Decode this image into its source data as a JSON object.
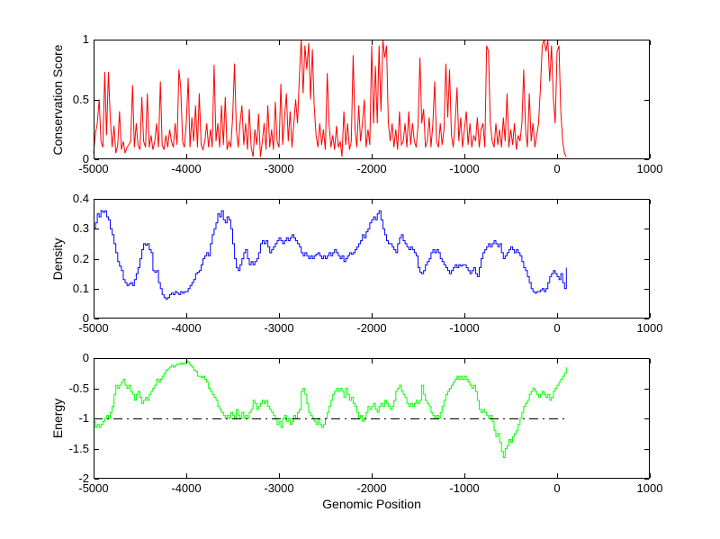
{
  "figure": {
    "background": "#ffffff",
    "axis_color": "#000000"
  },
  "xlabel": "Genomic Position",
  "chart_data": [
    {
      "type": "line",
      "name": "conservation-score",
      "ylabel": "Conservation Score",
      "xlabel": "",
      "color": "#ff0000",
      "interpolation": "linear",
      "xlim": [
        -5000,
        1000
      ],
      "ylim": [
        0,
        1
      ],
      "xticks": [
        -5000,
        -4000,
        -3000,
        -2000,
        -1000,
        0,
        1000
      ],
      "xtick_labels": [
        "-5000",
        "-4000",
        "-3000",
        "-2000",
        "-1000",
        "0",
        "1000"
      ],
      "yticks": [
        0,
        0.5,
        1
      ],
      "ytick_labels": [
        "0",
        "0.5",
        "1"
      ],
      "x_start": -5000,
      "x_step": 20,
      "values": [
        0.05,
        0.22,
        0.3,
        0.5,
        0.15,
        0.1,
        0.73,
        0.2,
        0.73,
        0.35,
        0.1,
        0.28,
        0.05,
        0.12,
        0.4,
        0.08,
        0.15,
        0.05,
        0.1,
        0.12,
        0.15,
        0.62,
        0.1,
        0.3,
        0.12,
        0.08,
        0.52,
        0.15,
        0.1,
        0.55,
        0.1,
        0.2,
        0.08,
        0.15,
        0.3,
        0.1,
        0.65,
        0.12,
        0.08,
        0.2,
        0.1,
        0.25,
        0.15,
        0.1,
        0.3,
        0.12,
        0.75,
        0.6,
        0.15,
        0.1,
        0.3,
        0.68,
        0.1,
        0.35,
        0.15,
        0.45,
        0.1,
        0.55,
        0.12,
        0.08,
        0.15,
        0.3,
        0.1,
        0.25,
        0.1,
        0.79,
        0.15,
        0.3,
        0.1,
        0.45,
        0.12,
        0.52,
        0.08,
        0.15,
        0.1,
        0.35,
        0.8,
        0.25,
        0.1,
        0.3,
        0.45,
        0.12,
        0.3,
        0.08,
        0.42,
        0.1,
        0.02,
        0.25,
        0.12,
        0.38,
        0.02,
        0.15,
        0.3,
        0.08,
        0.45,
        0.1,
        0.25,
        0.08,
        0.48,
        0.15,
        0.1,
        0.63,
        0.12,
        0.35,
        0.55,
        0.15,
        0.4,
        0.1,
        0.3,
        0.5,
        0.3,
        0.7,
        1.0,
        0.55,
        0.95,
        0.75,
        0.97,
        0.5,
        0.92,
        0.45,
        0.2,
        0.1,
        0.3,
        0.12,
        0.25,
        0.08,
        0.72,
        0.3,
        0.1,
        0.2,
        0.08,
        0.28,
        0.1,
        0.15,
        0.02,
        0.4,
        0.12,
        0.3,
        0.08,
        0.15,
        0.87,
        0.25,
        0.1,
        0.45,
        0.15,
        0.3,
        0.5,
        0.1,
        0.25,
        0.12,
        0.95,
        0.3,
        0.78,
        0.3,
        0.95,
        0.4,
        1.0,
        0.85,
        0.95,
        0.3,
        0.15,
        0.3,
        0.1,
        0.25,
        0.08,
        0.4,
        0.12,
        0.15,
        0.3,
        0.1,
        0.4,
        0.12,
        0.3,
        0.15,
        0.1,
        0.28,
        0.85,
        0.3,
        0.42,
        0.1,
        0.15,
        0.35,
        0.1,
        0.3,
        0.65,
        0.15,
        0.1,
        0.3,
        0.12,
        0.25,
        0.8,
        0.35,
        0.75,
        0.2,
        0.1,
        0.3,
        0.6,
        0.15,
        0.35,
        0.1,
        0.25,
        0.4,
        0.12,
        0.3,
        0.1,
        0.2,
        0.15,
        0.35,
        0.1,
        0.25,
        0.3,
        0.1,
        0.95,
        0.9,
        0.3,
        0.15,
        0.1,
        0.3,
        0.12,
        0.25,
        0.1,
        0.35,
        0.15,
        0.55,
        0.1,
        0.25,
        0.12,
        0.3,
        0.08,
        0.2,
        0.15,
        0.3,
        0.75,
        0.25,
        0.1,
        0.55,
        0.15,
        0.3,
        0.1,
        0.2,
        0.3,
        0.6,
        0.95,
        1.0,
        0.9,
        1.0,
        0.65,
        0.95,
        0.5,
        0.3,
        0.9,
        0.95,
        0.4,
        0.15,
        0.05,
        0.02
      ]
    },
    {
      "type": "line",
      "name": "density",
      "ylabel": "Density",
      "xlabel": "",
      "color": "#0000ff",
      "interpolation": "step",
      "xlim": [
        -5000,
        1000
      ],
      "ylim": [
        0,
        0.4
      ],
      "xticks": [
        -5000,
        -4000,
        -3000,
        -2000,
        -1000,
        0,
        1000
      ],
      "xtick_labels": [
        "-5000",
        "-4000",
        "-3000",
        "-2000",
        "-1000",
        "0",
        "1000"
      ],
      "yticks": [
        0,
        0.1,
        0.2,
        0.3,
        0.4
      ],
      "ytick_labels": [
        "0",
        "0.1",
        "0.2",
        "0.3",
        "0.4"
      ],
      "x_start": -5000,
      "x_step": 20,
      "values": [
        0.3,
        0.32,
        0.35,
        0.34,
        0.36,
        0.355,
        0.36,
        0.34,
        0.33,
        0.3,
        0.28,
        0.25,
        0.22,
        0.19,
        0.175,
        0.16,
        0.13,
        0.12,
        0.11,
        0.115,
        0.12,
        0.11,
        0.13,
        0.15,
        0.17,
        0.2,
        0.23,
        0.25,
        0.245,
        0.25,
        0.23,
        0.22,
        0.16,
        0.155,
        0.16,
        0.12,
        0.1,
        0.08,
        0.07,
        0.065,
        0.07,
        0.08,
        0.085,
        0.08,
        0.09,
        0.085,
        0.08,
        0.09,
        0.085,
        0.09,
        0.09,
        0.1,
        0.11,
        0.12,
        0.13,
        0.15,
        0.155,
        0.16,
        0.18,
        0.2,
        0.21,
        0.22,
        0.21,
        0.25,
        0.28,
        0.3,
        0.32,
        0.35,
        0.34,
        0.36,
        0.33,
        0.32,
        0.34,
        0.33,
        0.3,
        0.25,
        0.2,
        0.17,
        0.16,
        0.18,
        0.2,
        0.22,
        0.23,
        0.2,
        0.18,
        0.19,
        0.18,
        0.19,
        0.2,
        0.22,
        0.25,
        0.26,
        0.25,
        0.26,
        0.24,
        0.22,
        0.23,
        0.24,
        0.25,
        0.26,
        0.27,
        0.26,
        0.25,
        0.26,
        0.27,
        0.26,
        0.27,
        0.28,
        0.27,
        0.26,
        0.25,
        0.24,
        0.22,
        0.21,
        0.22,
        0.21,
        0.2,
        0.21,
        0.2,
        0.21,
        0.215,
        0.22,
        0.21,
        0.2,
        0.21,
        0.2,
        0.21,
        0.22,
        0.21,
        0.22,
        0.23,
        0.22,
        0.21,
        0.2,
        0.21,
        0.19,
        0.2,
        0.21,
        0.22,
        0.215,
        0.22,
        0.23,
        0.24,
        0.25,
        0.26,
        0.28,
        0.27,
        0.29,
        0.3,
        0.32,
        0.33,
        0.34,
        0.33,
        0.35,
        0.36,
        0.33,
        0.3,
        0.28,
        0.26,
        0.25,
        0.25,
        0.24,
        0.23,
        0.22,
        0.25,
        0.27,
        0.28,
        0.26,
        0.25,
        0.24,
        0.23,
        0.24,
        0.23,
        0.22,
        0.21,
        0.17,
        0.155,
        0.15,
        0.16,
        0.18,
        0.19,
        0.2,
        0.22,
        0.23,
        0.22,
        0.23,
        0.22,
        0.2,
        0.19,
        0.18,
        0.17,
        0.16,
        0.15,
        0.16,
        0.17,
        0.18,
        0.17,
        0.18,
        0.175,
        0.18,
        0.18,
        0.17,
        0.16,
        0.15,
        0.16,
        0.17,
        0.15,
        0.14,
        0.17,
        0.2,
        0.22,
        0.23,
        0.24,
        0.25,
        0.24,
        0.25,
        0.26,
        0.25,
        0.24,
        0.25,
        0.22,
        0.2,
        0.21,
        0.22,
        0.23,
        0.24,
        0.23,
        0.22,
        0.23,
        0.22,
        0.21,
        0.19,
        0.17,
        0.16,
        0.14,
        0.12,
        0.1,
        0.09,
        0.085,
        0.09,
        0.09,
        0.095,
        0.1,
        0.09,
        0.1,
        0.12,
        0.14,
        0.15,
        0.16,
        0.15,
        0.14,
        0.13,
        0.15,
        0.12,
        0.1,
        0.17
      ]
    },
    {
      "type": "line",
      "name": "energy",
      "ylabel": "Energy",
      "xlabel": "Genomic Position",
      "color": "#00ff00",
      "interpolation": "step",
      "xlim": [
        -5000,
        1000
      ],
      "ylim": [
        -2,
        0
      ],
      "xticks": [
        -5000,
        -4000,
        -3000,
        -2000,
        -1000,
        0,
        1000
      ],
      "xtick_labels": [
        "-5000",
        "-4000",
        "-3000",
        "-2000",
        "-1000",
        "0",
        "1000"
      ],
      "yticks": [
        -2,
        -1.5,
        -1,
        -0.5,
        0
      ],
      "ytick_labels": [
        "-2",
        "-1.5",
        "-1",
        "-0.5",
        "0"
      ],
      "x_start": -5000,
      "x_step": 20,
      "reference_line": {
        "y": -1,
        "style": "dash-dot",
        "color": "#000000",
        "x_start": -5000,
        "x_end": 100
      },
      "values": [
        -1.05,
        -1.15,
        -1.1,
        -1.15,
        -1.1,
        -1.05,
        -1.0,
        -0.95,
        -1.0,
        -0.9,
        -0.8,
        -0.6,
        -0.45,
        -0.5,
        -0.45,
        -0.4,
        -0.35,
        -0.45,
        -0.5,
        -0.45,
        -0.55,
        -0.6,
        -0.7,
        -0.6,
        -0.55,
        -0.65,
        -0.75,
        -0.7,
        -0.65,
        -0.7,
        -0.6,
        -0.55,
        -0.5,
        -0.45,
        -0.35,
        -0.4,
        -0.35,
        -0.3,
        -0.25,
        -0.2,
        -0.18,
        -0.15,
        -0.12,
        -0.15,
        -0.12,
        -0.1,
        -0.1,
        -0.08,
        -0.1,
        -0.08,
        -0.05,
        -0.08,
        -0.12,
        -0.15,
        -0.2,
        -0.22,
        -0.3,
        -0.3,
        -0.32,
        -0.3,
        -0.35,
        -0.4,
        -0.5,
        -0.55,
        -0.6,
        -0.65,
        -0.7,
        -0.8,
        -0.85,
        -0.9,
        -0.95,
        -1.0,
        -0.95,
        -1.0,
        -0.9,
        -0.95,
        -1.0,
        -0.85,
        -0.95,
        -1.0,
        -0.9,
        -1.0,
        -0.95,
        -1.0,
        -0.9,
        -0.85,
        -0.7,
        -0.75,
        -0.85,
        -0.8,
        -0.75,
        -0.7,
        -0.75,
        -0.7,
        -0.8,
        -0.85,
        -0.9,
        -0.95,
        -1.0,
        -1.1,
        -1.05,
        -1.15,
        -1.0,
        -0.95,
        -1.05,
        -1.0,
        -1.1,
        -1.05,
        -0.95,
        -1.0,
        -0.9,
        -0.85,
        -0.55,
        -0.5,
        -0.6,
        -0.75,
        -0.9,
        -0.95,
        -1.0,
        -1.05,
        -1.1,
        -1.0,
        -1.1,
        -1.15,
        -1.1,
        -1.0,
        -0.9,
        -0.8,
        -0.7,
        -0.6,
        -0.55,
        -0.5,
        -0.55,
        -0.5,
        -0.55,
        -0.65,
        -0.5,
        -0.6,
        -0.7,
        -0.65,
        -0.75,
        -0.8,
        -0.9,
        -1.0,
        -0.95,
        -1.05,
        -1.0,
        -0.9,
        -0.8,
        -0.85,
        -0.8,
        -0.75,
        -0.85,
        -0.9,
        -0.8,
        -0.75,
        -0.8,
        -0.7,
        -0.75,
        -0.8,
        -0.85,
        -0.8,
        -0.7,
        -0.55,
        -0.5,
        -0.45,
        -0.55,
        -0.6,
        -0.65,
        -0.75,
        -0.8,
        -0.75,
        -0.8,
        -0.75,
        -0.7,
        -0.75,
        -0.7,
        -0.45,
        -0.6,
        -0.7,
        -0.75,
        -0.8,
        -0.9,
        -0.95,
        -1.0,
        -0.95,
        -1.0,
        -0.9,
        -0.8,
        -0.7,
        -0.6,
        -0.55,
        -0.5,
        -0.45,
        -0.4,
        -0.35,
        -0.3,
        -0.35,
        -0.3,
        -0.35,
        -0.3,
        -0.35,
        -0.4,
        -0.45,
        -0.5,
        -0.45,
        -0.55,
        -0.7,
        -0.85,
        -0.9,
        -0.85,
        -0.9,
        -0.95,
        -1.0,
        -0.95,
        -1.05,
        -1.2,
        -1.3,
        -1.25,
        -1.4,
        -1.55,
        -1.65,
        -1.5,
        -1.45,
        -1.35,
        -1.4,
        -1.3,
        -1.25,
        -1.2,
        -1.1,
        -1.0,
        -0.9,
        -0.8,
        -0.75,
        -0.7,
        -0.6,
        -0.55,
        -0.5,
        -0.55,
        -0.6,
        -0.65,
        -0.6,
        -0.55,
        -0.6,
        -0.65,
        -0.6,
        -0.7,
        -0.65,
        -0.55,
        -0.5,
        -0.45,
        -0.4,
        -0.35,
        -0.3,
        -0.25,
        -0.15
      ]
    }
  ]
}
